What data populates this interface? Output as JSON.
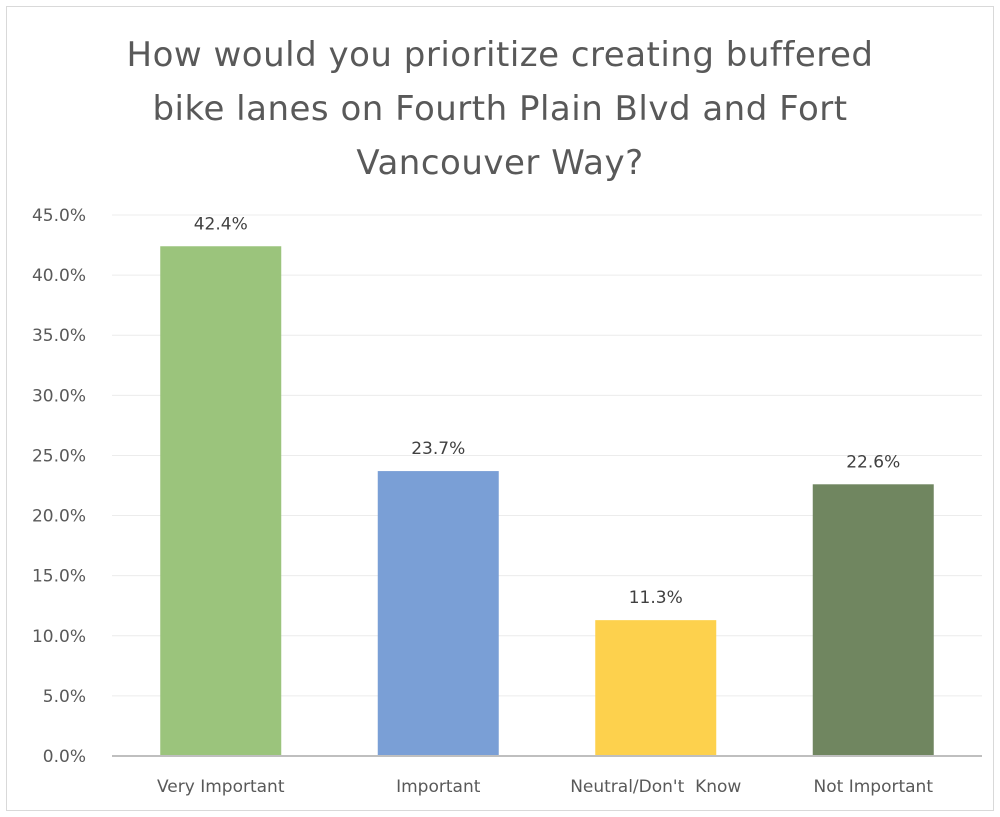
{
  "chart_data": {
    "type": "bar",
    "title_lines": [
      "How would you prioritize creating buffered",
      "bike lanes on Fourth Plain Blvd and Fort",
      "Vancouver Way?"
    ],
    "categories": [
      "Very Important",
      "Important",
      "Neutral/Don't  Know",
      "Not Important"
    ],
    "values": [
      42.4,
      23.7,
      11.3,
      22.6
    ],
    "data_labels": [
      "42.4%",
      "23.7%",
      "11.3%",
      "22.6%"
    ],
    "bar_colors": [
      "#9bc47c",
      "#7a9fd6",
      "#fdd14d",
      "#708660"
    ],
    "ylim": [
      0,
      45
    ],
    "yticks": [
      0,
      5,
      10,
      15,
      20,
      25,
      30,
      35,
      40,
      45
    ],
    "ytick_labels": [
      "0.0%",
      "5.0%",
      "10.0%",
      "15.0%",
      "20.0%",
      "25.0%",
      "30.0%",
      "35.0%",
      "40.0%",
      "45.0%"
    ],
    "grid": true,
    "legend": "none",
    "xlabel": "",
    "ylabel": ""
  }
}
